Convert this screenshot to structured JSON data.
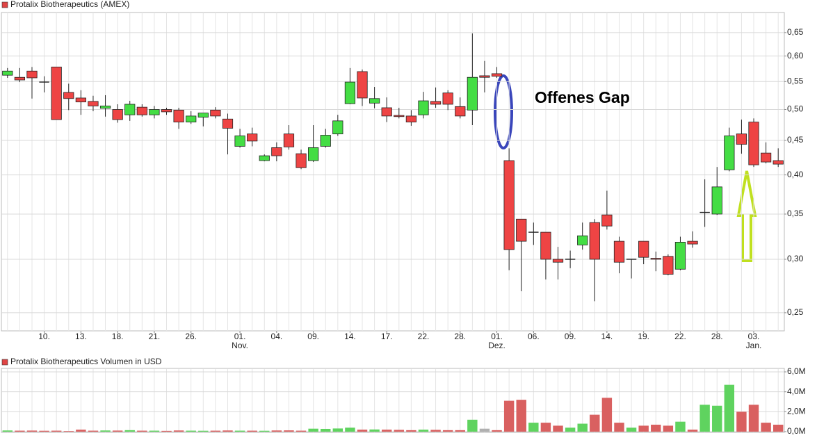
{
  "chart_data": [
    {
      "type": "candlestick",
      "title": "Protalix Biotherapeutics (AMEX)",
      "annotation": "Offenes Gap",
      "categories": [
        null,
        null,
        null,
        "10.",
        null,
        null,
        "13.",
        null,
        null,
        "18.",
        null,
        null,
        "21.",
        null,
        null,
        "26.",
        null,
        null,
        null,
        "01.",
        null,
        null,
        "04.",
        null,
        null,
        "09.",
        null,
        null,
        "14.",
        null,
        null,
        "17.",
        null,
        null,
        "22.",
        null,
        null,
        "28.",
        null,
        null,
        "01.",
        null,
        null,
        "06.",
        null,
        null,
        "09.",
        null,
        null,
        "14.",
        null,
        null,
        "19.",
        null,
        null,
        "22.",
        null,
        null,
        "28.",
        null,
        null,
        "03.",
        null,
        null
      ],
      "month_labels": [
        null,
        null,
        null,
        null,
        null,
        null,
        null,
        null,
        null,
        null,
        null,
        null,
        null,
        null,
        null,
        null,
        null,
        null,
        null,
        "Nov.",
        null,
        null,
        null,
        null,
        null,
        null,
        null,
        null,
        null,
        null,
        null,
        null,
        null,
        null,
        null,
        null,
        null,
        null,
        null,
        null,
        "Dez.",
        null,
        null,
        null,
        null,
        null,
        null,
        null,
        null,
        null,
        null,
        null,
        null,
        null,
        null,
        null,
        null,
        null,
        null,
        null,
        null,
        "Jan.",
        null,
        null
      ],
      "open": [
        0.562,
        0.558,
        0.57,
        0.549,
        0.578,
        0.53,
        0.52,
        0.514,
        0.502,
        0.5,
        0.491,
        0.504,
        0.491,
        0.5,
        0.499,
        0.479,
        0.487,
        0.499,
        0.484,
        0.441,
        0.46,
        0.42,
        0.439,
        0.46,
        0.43,
        0.42,
        0.441,
        0.46,
        0.51,
        0.569,
        0.511,
        0.503,
        0.49,
        0.489,
        0.491,
        0.514,
        0.529,
        0.505,
        0.499,
        0.561,
        0.565,
        0.42,
        0.344,
        0.329,
        0.329,
        0.3,
        0.3,
        0.315,
        0.34,
        0.349,
        0.319,
        0.3,
        0.319,
        0.301,
        0.303,
        0.29,
        0.319,
        0.352,
        0.35,
        0.407,
        0.46,
        0.479,
        0.431,
        0.42
      ],
      "high": [
        0.576,
        0.576,
        0.578,
        0.56,
        0.578,
        0.546,
        0.534,
        0.524,
        0.525,
        0.509,
        0.515,
        0.509,
        0.506,
        0.503,
        0.503,
        0.497,
        0.494,
        0.504,
        0.493,
        0.468,
        0.47,
        0.429,
        0.447,
        0.474,
        0.436,
        0.474,
        0.468,
        0.491,
        0.576,
        0.573,
        0.54,
        0.521,
        0.503,
        0.499,
        0.531,
        0.539,
        0.534,
        0.521,
        0.648,
        0.59,
        0.578,
        0.438,
        0.344,
        0.34,
        0.329,
        0.313,
        0.309,
        0.34,
        0.344,
        0.379,
        0.324,
        0.3,
        0.319,
        0.308,
        0.305,
        0.324,
        0.33,
        0.394,
        0.411,
        0.47,
        0.483,
        0.485,
        0.447,
        0.438
      ],
      "low": [
        0.557,
        0.549,
        0.519,
        0.53,
        0.483,
        0.499,
        0.491,
        0.497,
        0.488,
        0.478,
        0.481,
        0.488,
        0.485,
        0.491,
        0.468,
        0.476,
        0.472,
        0.485,
        0.429,
        0.439,
        0.441,
        0.419,
        0.419,
        0.436,
        0.408,
        0.418,
        0.439,
        0.457,
        0.509,
        0.506,
        0.502,
        0.479,
        0.485,
        0.473,
        0.485,
        0.503,
        0.499,
        0.485,
        0.474,
        0.53,
        0.557,
        0.289,
        0.269,
        0.315,
        0.28,
        0.28,
        0.291,
        0.31,
        0.26,
        0.332,
        0.286,
        0.281,
        0.295,
        0.288,
        0.284,
        0.289,
        0.312,
        0.335,
        0.349,
        0.405,
        0.43,
        0.411,
        0.416,
        0.411
      ],
      "close": [
        0.57,
        0.553,
        0.557,
        0.549,
        0.483,
        0.519,
        0.513,
        0.506,
        0.506,
        0.483,
        0.509,
        0.491,
        0.5,
        0.496,
        0.479,
        0.489,
        0.494,
        0.489,
        0.469,
        0.457,
        0.449,
        0.427,
        0.427,
        0.44,
        0.41,
        0.439,
        0.458,
        0.481,
        0.549,
        0.52,
        0.519,
        0.489,
        0.488,
        0.479,
        0.515,
        0.509,
        0.509,
        0.489,
        0.558,
        0.558,
        0.56,
        0.31,
        0.319,
        0.329,
        0.3,
        0.297,
        0.3,
        0.325,
        0.3,
        0.336,
        0.297,
        0.3,
        0.302,
        0.3,
        0.285,
        0.318,
        0.316,
        0.352,
        0.384,
        0.457,
        0.444,
        0.414,
        0.418,
        0.415
      ],
      "up_color": "#44dd44",
      "down_color": "#ee4444",
      "legend_color": "#e04444",
      "ylim": [
        0.235,
        0.696
      ],
      "log_scale": true,
      "grid": true,
      "yticks": [
        {
          "value": 0.25,
          "label": "0,25"
        },
        {
          "value": 0.3,
          "label": "0,30"
        },
        {
          "value": 0.35,
          "label": "0,35"
        },
        {
          "value": 0.4,
          "label": "0,40"
        },
        {
          "value": 0.45,
          "label": "0,45"
        },
        {
          "value": 0.5,
          "label": "0,50"
        },
        {
          "value": 0.55,
          "label": "0,55"
        },
        {
          "value": 0.6,
          "label": "0,60"
        },
        {
          "value": 0.65,
          "label": "0,65"
        }
      ]
    },
    {
      "type": "bar",
      "title": "Protalix Biotherapeutics Volumen in USD",
      "legend_color": "#e04444",
      "values": [
        120000,
        100000,
        110000,
        90000,
        100000,
        60000,
        200000,
        100000,
        120000,
        110000,
        150000,
        100000,
        100000,
        80000,
        120000,
        100000,
        90000,
        100000,
        120000,
        100000,
        100000,
        90000,
        120000,
        130000,
        100000,
        300000,
        280000,
        320000,
        400000,
        200000,
        220000,
        200000,
        180000,
        150000,
        200000,
        180000,
        150000,
        150000,
        1200000,
        300000,
        150000,
        3100000,
        3200000,
        900000,
        900000,
        600000,
        400000,
        800000,
        1700000,
        3400000,
        900000,
        400000,
        600000,
        700000,
        600000,
        1000000,
        200000,
        2700000,
        2600000,
        4700000,
        2000000,
        2700000,
        900000,
        700000
      ],
      "colors": [
        "#5fd35f",
        "#d96060",
        "#d96060",
        "#d96060",
        "#d96060",
        "#d96060",
        "#d96060",
        "#d96060",
        "#5fd35f",
        "#d96060",
        "#5fd35f",
        "#d96060",
        "#5fd35f",
        "#d96060",
        "#d96060",
        "#5fd35f",
        "#5fd35f",
        "#d96060",
        "#d96060",
        "#5fd35f",
        "#d96060",
        "#5fd35f",
        "#d96060",
        "#d96060",
        "#d96060",
        "#5fd35f",
        "#5fd35f",
        "#5fd35f",
        "#5fd35f",
        "#d96060",
        "#5fd35f",
        "#d96060",
        "#d96060",
        "#d96060",
        "#5fd35f",
        "#d96060",
        "#d96060",
        "#d96060",
        "#5fd35f",
        "#b0b0b0",
        "#d96060",
        "#d96060",
        "#d96060",
        "#5fd35f",
        "#d96060",
        "#d96060",
        "#5fd35f",
        "#5fd35f",
        "#d96060",
        "#d96060",
        "#d96060",
        "#5fd35f",
        "#d96060",
        "#d96060",
        "#d96060",
        "#5fd35f",
        "#d96060",
        "#5fd35f",
        "#5fd35f",
        "#5fd35f",
        "#d96060",
        "#d96060",
        "#d96060",
        "#d96060"
      ],
      "ylim": [
        0,
        6000000
      ],
      "grid": true,
      "yticks": [
        {
          "value": 0,
          "label": "0,0M"
        },
        {
          "value": 2000000,
          "label": "2,0M"
        },
        {
          "value": 4000000,
          "label": "4,0M"
        },
        {
          "value": 6000000,
          "label": "6,0M"
        }
      ]
    }
  ]
}
